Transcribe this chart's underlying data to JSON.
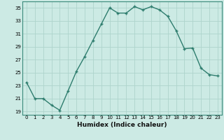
{
  "x": [
    0,
    1,
    2,
    3,
    4,
    5,
    6,
    7,
    8,
    9,
    10,
    11,
    12,
    13,
    14,
    15,
    16,
    17,
    18,
    19,
    20,
    21,
    22,
    23
  ],
  "y": [
    23.5,
    21.0,
    21.0,
    20.0,
    19.2,
    22.2,
    25.2,
    27.5,
    30.0,
    32.5,
    35.0,
    34.2,
    34.2,
    35.2,
    34.7,
    35.2,
    34.7,
    33.7,
    31.5,
    28.7,
    28.8,
    25.7,
    24.7,
    24.5
  ],
  "line_color": "#2e7d6e",
  "marker": "+",
  "markersize": 3.5,
  "linewidth": 1.0,
  "markeredgewidth": 1.0,
  "xlabel": "Humidex (Indice chaleur)",
  "xlim": [
    -0.5,
    23.5
  ],
  "ylim": [
    18.5,
    36.0
  ],
  "yticks": [
    19,
    21,
    23,
    25,
    27,
    29,
    31,
    33,
    35
  ],
  "xticks": [
    0,
    1,
    2,
    3,
    4,
    5,
    6,
    7,
    8,
    9,
    10,
    11,
    12,
    13,
    14,
    15,
    16,
    17,
    18,
    19,
    20,
    21,
    22,
    23
  ],
  "grid_color": "#aed4cc",
  "bg_color": "#cceae4",
  "tick_fontsize": 5.0,
  "xlabel_fontsize": 6.5
}
